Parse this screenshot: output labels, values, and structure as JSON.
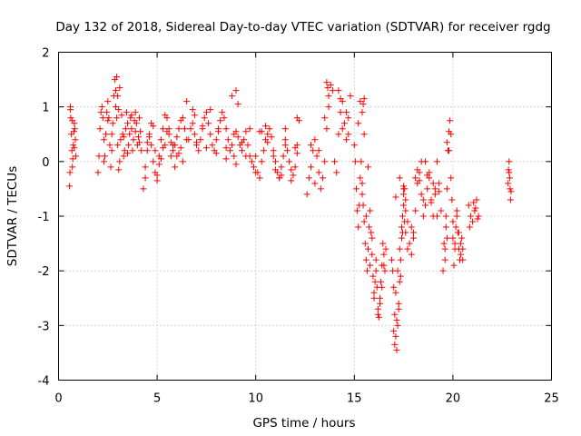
{
  "chart_data": {
    "type": "scatter",
    "title": "Day 132 of 2018, Sidereal Day-to-day VTEC variation (SDTVAR) for receiver rgdg",
    "xlabel": "GPS time / hours",
    "ylabel": "SDTVAR / TECUs",
    "xlim": [
      0,
      25
    ],
    "ylim": [
      -4,
      2
    ],
    "grid": true,
    "marker": "+",
    "x_ticks": [
      0,
      5,
      10,
      15,
      20,
      25
    ],
    "y_ticks": [
      -4,
      -3,
      -2,
      -1,
      0,
      1,
      2
    ],
    "x_tick_labels": [
      "0",
      "5",
      "10",
      "15",
      "20",
      "25"
    ],
    "y_tick_labels": [
      "-4",
      "-3",
      "-2",
      "-1",
      "0",
      "1",
      "2"
    ],
    "series": [
      {
        "name": "SDTVAR",
        "color": "#ff0000",
        "x": [
          0.55,
          0.58,
          0.6,
          0.62,
          0.65,
          0.68,
          0.7,
          0.72,
          0.75,
          0.78,
          0.8,
          0.82,
          0.85,
          0.88,
          0.6,
          0.7,
          0.8,
          2.0,
          2.05,
          2.1,
          2.15,
          2.2,
          2.25,
          2.3,
          2.35,
          2.4,
          2.45,
          2.5,
          2.55,
          2.6,
          2.65,
          2.7,
          2.75,
          2.8,
          2.85,
          2.9,
          2.95,
          3.0,
          3.05,
          3.1,
          3.15,
          3.2,
          3.25,
          3.3,
          3.35,
          3.4,
          3.45,
          3.5,
          3.55,
          3.6,
          3.65,
          3.7,
          3.75,
          3.8,
          3.85,
          3.9,
          3.95,
          4.0,
          4.05,
          4.1,
          4.15,
          4.2,
          2.3,
          2.5,
          2.7,
          2.9,
          3.1,
          3.3,
          3.5,
          3.7,
          3.9,
          4.1,
          2.95,
          3.0,
          3.05,
          4.3,
          4.4,
          4.5,
          4.6,
          4.7,
          4.8,
          4.9,
          5.0,
          5.1,
          5.2,
          5.3,
          5.4,
          5.5,
          5.6,
          5.7,
          5.8,
          5.9,
          6.0,
          6.1,
          6.2,
          6.3,
          6.4,
          6.5,
          4.5,
          4.7,
          4.9,
          5.1,
          5.3,
          5.5,
          5.7,
          5.9,
          6.1,
          6.3,
          5.0,
          5.2,
          5.4,
          5.6,
          5.8,
          6.0,
          6.2,
          4.4,
          4.6,
          4.8,
          6.6,
          6.7,
          6.8,
          6.9,
          7.0,
          7.1,
          7.2,
          7.3,
          7.4,
          7.5,
          7.6,
          7.7,
          7.8,
          7.9,
          8.0,
          8.1,
          8.2,
          8.3,
          8.4,
          8.5,
          8.6,
          8.7,
          8.8,
          8.9,
          9.0,
          9.1,
          9.2,
          9.3,
          9.4,
          9.5,
          9.6,
          9.7,
          9.8,
          9.9,
          10.0,
          6.5,
          6.9,
          7.3,
          7.7,
          8.1,
          8.5,
          8.9,
          9.3,
          9.7,
          7.0,
          7.5,
          8.0,
          8.5,
          9.0,
          9.5,
          10.0,
          6.8,
          8.8,
          9.0,
          9.1,
          10.1,
          10.2,
          10.3,
          10.4,
          10.5,
          10.6,
          10.7,
          10.8,
          10.9,
          11.0,
          11.1,
          11.2,
          11.3,
          11.4,
          11.5,
          11.6,
          11.7,
          11.8,
          11.9,
          12.0,
          12.1,
          12.2,
          10.3,
          10.6,
          10.9,
          11.2,
          11.5,
          11.8,
          12.1,
          10.5,
          11.0,
          11.5,
          12.0,
          10.2,
          11.3,
          12.1,
          12.6,
          12.7,
          12.8,
          12.9,
          13.0,
          13.1,
          13.2,
          13.3,
          13.4,
          13.5,
          13.6,
          13.7,
          13.8,
          13.9,
          12.8,
          13.0,
          13.2,
          13.5,
          13.6,
          13.65,
          13.7,
          14.0,
          14.1,
          14.2,
          14.3,
          14.4,
          14.5,
          14.6,
          14.7,
          14.8,
          14.2,
          14.4,
          14.6,
          14.7,
          14.3,
          15.0,
          15.05,
          15.1,
          15.15,
          15.2,
          15.25,
          15.3,
          15.35,
          15.4,
          15.45,
          15.5,
          15.55,
          15.6,
          15.65,
          15.7,
          15.75,
          15.8,
          15.85,
          15.9,
          15.95,
          16.0,
          16.05,
          16.1,
          16.15,
          16.2,
          16.25,
          16.3,
          16.35,
          16.4,
          16.45,
          16.5,
          16.55,
          16.6,
          15.3,
          15.5,
          15.7,
          15.9,
          16.1,
          16.3,
          16.5,
          15.2,
          15.4,
          15.6,
          15.8,
          16.0,
          16.2,
          16.4,
          15.4,
          15.45,
          15.5,
          16.9,
          17.0,
          17.05,
          17.1,
          17.15,
          17.2,
          17.25,
          17.3,
          17.35,
          17.4,
          17.45,
          17.5,
          17.55,
          17.6,
          17.0,
          17.1,
          17.2,
          17.3,
          17.4,
          17.5,
          16.95,
          17.15,
          17.35,
          17.55,
          17.05,
          17.25,
          17.45,
          17.1,
          17.3,
          17.5,
          17.5,
          17.6,
          17.7,
          17.8,
          17.9,
          18.0,
          18.1,
          18.2,
          18.3,
          18.4,
          18.5,
          18.6,
          18.7,
          18.8,
          18.9,
          19.0,
          19.1,
          19.2,
          19.3,
          19.4,
          17.7,
          17.9,
          18.1,
          18.3,
          18.5,
          18.7,
          18.9,
          19.1,
          19.3,
          17.6,
          18.0,
          18.4,
          18.8,
          19.2,
          18.6,
          18.2,
          19.0,
          19.5,
          19.6,
          19.65,
          19.7,
          19.75,
          19.8,
          19.85,
          19.9,
          19.95,
          20.0,
          20.05,
          20.1,
          20.15,
          20.2,
          20.25,
          20.3,
          20.35,
          20.4,
          20.45,
          20.5,
          19.6,
          19.8,
          20.0,
          20.2,
          20.4,
          19.7,
          19.9,
          20.1,
          20.3,
          20.5,
          19.55,
          19.65,
          19.7,
          20.8,
          20.9,
          21.0,
          21.1,
          21.2,
          21.3,
          20.85,
          21.05,
          21.25,
          21.15,
          22.8,
          22.82,
          22.85,
          22.88,
          22.9,
          22.92,
          22.95,
          22.85
        ],
        "y": [
          -0.45,
          -0.2,
          0.95,
          0.8,
          0.5,
          0.2,
          -0.1,
          0.05,
          0.3,
          0.55,
          0.7,
          0.6,
          0.4,
          0.1,
          1.0,
          0.75,
          0.25,
          -0.2,
          0.1,
          0.6,
          0.9,
          1.0,
          0.8,
          0.4,
          0.1,
          0.5,
          0.9,
          1.1,
          0.8,
          0.3,
          -0.1,
          0.2,
          0.7,
          1.2,
          1.5,
          1.3,
          0.8,
          0.3,
          -0.15,
          0.0,
          0.4,
          0.85,
          0.5,
          0.1,
          0.2,
          0.6,
          0.9,
          0.7,
          0.3,
          0.5,
          0.8,
          0.6,
          0.2,
          0.4,
          0.75,
          0.9,
          0.7,
          0.3,
          0.45,
          0.8,
          0.55,
          0.2,
          0.0,
          0.75,
          0.5,
          1.0,
          1.35,
          0.45,
          0.15,
          0.85,
          0.55,
          0.35,
          1.55,
          1.2,
          0.95,
          -0.5,
          -0.1,
          0.2,
          0.5,
          0.3,
          0.0,
          -0.2,
          -0.35,
          0.1,
          0.4,
          0.6,
          0.85,
          0.8,
          0.6,
          0.35,
          0.2,
          0.3,
          0.45,
          0.6,
          0.75,
          0.8,
          0.6,
          0.4,
          0.35,
          0.7,
          0.2,
          -0.05,
          0.25,
          0.55,
          0.1,
          -0.1,
          0.15,
          0.0,
          -0.25,
          0.05,
          0.3,
          0.5,
          0.3,
          0.1,
          0.25,
          -0.3,
          0.45,
          0.65,
          0.4,
          0.6,
          0.7,
          0.5,
          0.3,
          0.2,
          0.4,
          0.6,
          0.8,
          0.9,
          0.7,
          0.5,
          0.3,
          0.2,
          0.4,
          0.6,
          0.75,
          0.9,
          0.8,
          0.6,
          0.4,
          0.2,
          0.3,
          0.5,
          0.55,
          0.45,
          0.3,
          0.2,
          0.4,
          0.55,
          0.3,
          0.1,
          0.0,
          -0.1,
          0.1,
          1.1,
          0.85,
          0.65,
          0.95,
          0.55,
          0.25,
          0.1,
          0.35,
          0.6,
          0.35,
          0.25,
          0.15,
          0.05,
          -0.05,
          0.1,
          -0.2,
          0.95,
          1.2,
          1.3,
          1.05,
          -0.2,
          -0.3,
          0.0,
          0.2,
          0.4,
          0.5,
          0.6,
          0.45,
          0.2,
          0.0,
          -0.2,
          -0.3,
          -0.1,
          0.1,
          0.3,
          0.2,
          0.0,
          -0.15,
          -0.25,
          -0.1,
          0.3,
          0.75,
          0.55,
          0.35,
          0.1,
          -0.3,
          0.4,
          -0.35,
          0.15,
          0.65,
          -0.15,
          0.6,
          0.25,
          0.55,
          -0.25,
          0.8,
          -0.6,
          -0.3,
          -0.1,
          0.2,
          0.4,
          0.1,
          -0.2,
          -0.5,
          -0.3,
          0.0,
          0.6,
          1.0,
          1.4,
          1.3,
          0.3,
          -0.4,
          0.2,
          0.8,
          1.45,
          1.35,
          1.2,
          0.0,
          -0.2,
          0.5,
          0.9,
          1.1,
          0.7,
          0.4,
          0.8,
          1.2,
          1.3,
          0.6,
          0.9,
          0.5,
          1.15,
          0.3,
          0.0,
          -0.5,
          -0.9,
          -1.2,
          -0.8,
          -0.3,
          0.0,
          -0.4,
          -0.8,
          -1.1,
          -1.5,
          -1.8,
          -2.0,
          -1.6,
          -1.2,
          -0.9,
          -1.3,
          -1.7,
          -2.1,
          -2.5,
          -2.2,
          -1.8,
          -2.3,
          -2.7,
          -2.85,
          -2.6,
          -2.2,
          -1.9,
          -1.5,
          -1.7,
          -2.0,
          -1.6,
          1.1,
          0.5,
          -0.1,
          -1.4,
          -2.0,
          -2.5,
          -1.9,
          0.7,
          -0.6,
          -1.0,
          -1.9,
          -2.4,
          -2.8,
          -2.3,
          0.9,
          1.05,
          1.15,
          -1.8,
          -2.3,
          -2.8,
          -3.2,
          -3.45,
          -3.0,
          -2.6,
          -2.2,
          -1.8,
          -1.4,
          -1.0,
          -0.6,
          -0.5,
          -0.9,
          -3.1,
          -2.4,
          -2.0,
          -1.6,
          -1.2,
          -0.8,
          -2.0,
          -2.9,
          -2.1,
          -1.1,
          -3.35,
          -2.7,
          -1.3,
          -0.65,
          -0.3,
          -0.45,
          -0.5,
          -0.7,
          -1.1,
          -1.5,
          -1.7,
          -1.3,
          -0.9,
          -0.4,
          -0.2,
          -0.6,
          -1.0,
          -0.8,
          -0.5,
          -0.3,
          -0.7,
          -1.0,
          -0.6,
          0.0,
          -0.4,
          -0.9,
          -1.6,
          -1.2,
          -0.3,
          -0.35,
          -0.7,
          -0.25,
          -0.75,
          -0.5,
          -0.55,
          -1.3,
          -1.4,
          0.0,
          -0.2,
          -1.0,
          0.0,
          -0.15,
          -0.4,
          -2.0,
          -1.6,
          -1.2,
          -0.5,
          0.2,
          0.55,
          0.75,
          0.5,
          -0.7,
          -1.4,
          -1.9,
          -1.5,
          -1.2,
          -0.9,
          -1.3,
          -1.6,
          -1.8,
          -1.7,
          -1.4,
          -1.6,
          -1.8,
          0.2,
          -1.1,
          -1.0,
          -1.5,
          -1.4,
          -0.3,
          -1.6,
          -1.3,
          -1.8,
          -1.5,
          -1.0,
          0.35,
          -0.8,
          -1.0,
          -1.1,
          -0.9,
          -0.7,
          -1.0,
          -1.2,
          -0.75,
          -1.05,
          -0.85,
          -0.4,
          -0.15,
          0.0,
          -0.3,
          -0.5,
          -0.7,
          -0.55,
          -0.2
        ]
      }
    ]
  }
}
